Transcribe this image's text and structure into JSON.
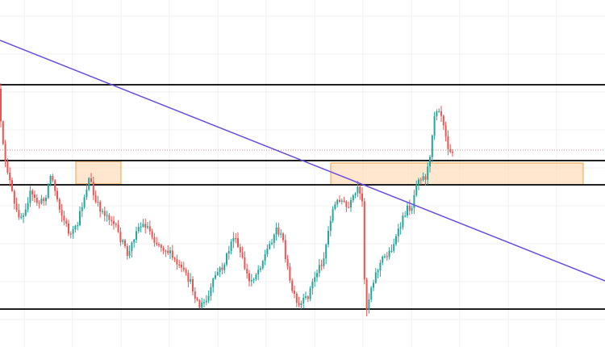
{
  "chart_data": {
    "type": "candlestick",
    "title": "",
    "xlabel": "",
    "ylabel": "",
    "grid": true,
    "price_range": [
      0,
      430
    ],
    "colors": {
      "up": "#26a69a",
      "down": "#ef5350",
      "trendline": "#6a4de0",
      "level": "#1f1f1f",
      "zone_fill": "#ffe0c2",
      "zone_stroke": "#f5a040",
      "current_price_line": "#f08080",
      "grid": "#f0f0f3"
    },
    "price_path": [
      [
        0,
        110
      ],
      [
        6,
        180
      ],
      [
        12,
        210
      ],
      [
        22,
        262
      ],
      [
        30,
        268
      ],
      [
        40,
        240
      ],
      [
        50,
        252
      ],
      [
        58,
        248
      ],
      [
        66,
        215
      ],
      [
        72,
        240
      ],
      [
        80,
        268
      ],
      [
        90,
        292
      ],
      [
        98,
        282
      ],
      [
        106,
        248
      ],
      [
        114,
        218
      ],
      [
        120,
        250
      ],
      [
        130,
        262
      ],
      [
        140,
        270
      ],
      [
        152,
        295
      ],
      [
        162,
        318
      ],
      [
        172,
        282
      ],
      [
        184,
        278
      ],
      [
        196,
        300
      ],
      [
        210,
        310
      ],
      [
        224,
        330
      ],
      [
        238,
        348
      ],
      [
        250,
        380
      ],
      [
        260,
        372
      ],
      [
        270,
        340
      ],
      [
        280,
        330
      ],
      [
        292,
        292
      ],
      [
        302,
        318
      ],
      [
        312,
        350
      ],
      [
        322,
        336
      ],
      [
        334,
        310
      ],
      [
        346,
        282
      ],
      [
        354,
        300
      ],
      [
        362,
        350
      ],
      [
        372,
        382
      ],
      [
        384,
        368
      ],
      [
        394,
        340
      ],
      [
        404,
        320
      ],
      [
        414,
        262
      ],
      [
        424,
        245
      ],
      [
        434,
        260
      ],
      [
        446,
        235
      ],
      [
        452,
        252
      ],
      [
        456,
        390
      ],
      [
        464,
        350
      ],
      [
        476,
        322
      ],
      [
        486,
        312
      ],
      [
        496,
        290
      ],
      [
        506,
        260
      ],
      [
        514,
        255
      ],
      [
        520,
        218
      ],
      [
        530,
        220
      ],
      [
        536,
        198
      ],
      [
        540,
        145
      ],
      [
        546,
        130
      ],
      [
        552,
        148
      ],
      [
        558,
        180
      ],
      [
        562,
        186
      ]
    ],
    "horizontal_levels": [
      {
        "y": 105
      },
      {
        "y": 199
      },
      {
        "y": 229
      },
      {
        "y": 383
      }
    ],
    "zones": [
      {
        "x1": 94,
        "x2": 150,
        "y1": 200,
        "y2": 228
      },
      {
        "x1": 410,
        "x2": 723,
        "y1": 202,
        "y2": 229
      }
    ],
    "trendline": {
      "x1": 0,
      "y1": 50,
      "x2": 750,
      "y2": 348
    },
    "current_price": 186
  }
}
